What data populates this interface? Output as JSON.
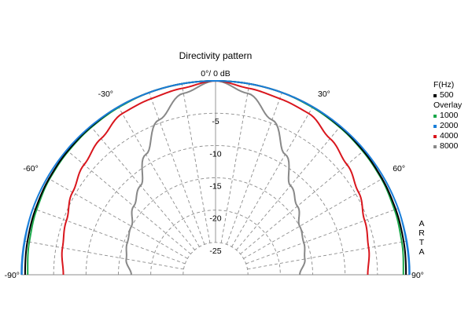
{
  "chart_data": {
    "type": "polar-half",
    "title": "Directivity pattern",
    "top_label": "0°/ 0 dB",
    "angle_range_deg": [
      -90,
      90
    ],
    "angle_tick_labels": [
      {
        "angle": -90,
        "text": "-90°"
      },
      {
        "angle": -60,
        "text": "-60°"
      },
      {
        "angle": -30,
        "text": "-30°"
      },
      {
        "angle": 30,
        "text": "30°"
      },
      {
        "angle": 60,
        "text": "60°"
      },
      {
        "angle": 90,
        "text": "90°"
      }
    ],
    "radial_range_db": [
      -30,
      0
    ],
    "radial_tick_labels": [
      {
        "value": -5,
        "text": "-5"
      },
      {
        "value": -10,
        "text": "-10"
      },
      {
        "value": -15,
        "text": "-15"
      },
      {
        "value": -20,
        "text": "-20"
      },
      {
        "value": -25,
        "text": "-25"
      }
    ],
    "grid": true,
    "angles": [
      -90,
      -80,
      -70,
      -60,
      -50,
      -40,
      -30,
      -20,
      -10,
      0,
      10,
      20,
      30,
      40,
      50,
      60,
      70,
      80,
      90
    ],
    "series": [
      {
        "name": "500",
        "color": "#000000",
        "values": [
          -0.6,
          -0.5,
          -0.4,
          -0.3,
          -0.2,
          -0.1,
          0,
          0,
          0,
          0,
          0,
          0,
          0,
          -0.1,
          -0.2,
          -0.3,
          -0.4,
          -0.5,
          -0.6
        ]
      },
      {
        "name": "1000",
        "color": "#1aa84a",
        "values": [
          -1.0,
          -0.8,
          -0.6,
          -0.4,
          -0.3,
          -0.2,
          -0.1,
          0,
          0,
          0,
          0,
          0,
          -0.1,
          -0.2,
          -0.3,
          -0.4,
          -0.6,
          -0.8,
          -1.0
        ]
      },
      {
        "name": "2000",
        "color": "#1b7fd9",
        "values": [
          -0.1,
          -0.1,
          0,
          0,
          0,
          0,
          0,
          0,
          0,
          0,
          0,
          0,
          0,
          0,
          0,
          0,
          0,
          -0.1,
          -0.1
        ]
      },
      {
        "name": "4000",
        "color": "#d9161d",
        "values": [
          -6.5,
          -6.0,
          -5.5,
          -4.5,
          -3.5,
          -2.5,
          -1.2,
          -1.0,
          -0.7,
          0,
          -0.7,
          -1.0,
          -1.2,
          -2.5,
          -3.5,
          -4.5,
          -5.5,
          -6.0,
          -6.5
        ]
      },
      {
        "name": "8000",
        "color": "#888888",
        "values": [
          -17.0,
          -16.0,
          -15.5,
          -15.0,
          -13.5,
          -12.0,
          -8.5,
          -4.5,
          -1.5,
          0,
          -1.5,
          -4.5,
          -8.5,
          -12.0,
          -13.5,
          -15.0,
          -15.5,
          -16.0,
          -17.0
        ]
      }
    ],
    "legend": {
      "header": "F(Hz)",
      "overlay_header": "Overlay",
      "position": "right"
    }
  },
  "watermark": {
    "letters": [
      "A",
      "R",
      "T",
      "A"
    ]
  }
}
